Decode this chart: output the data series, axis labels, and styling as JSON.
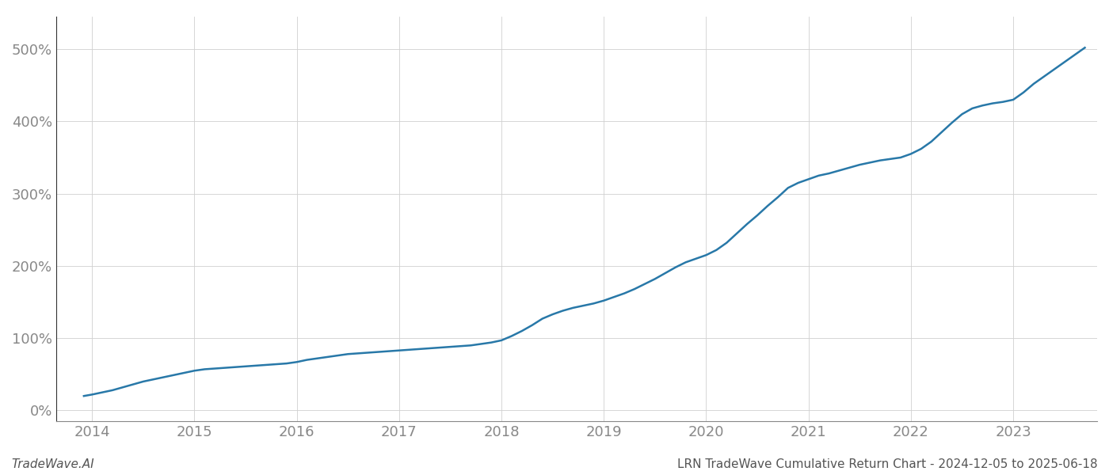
{
  "title": "LRN TradeWave Cumulative Return Chart - 2024-12-05 to 2025-06-18",
  "watermark": "TradeWave.AI",
  "line_color": "#2878a8",
  "background_color": "#ffffff",
  "grid_color": "#d0d0d0",
  "x_years": [
    2014,
    2015,
    2016,
    2017,
    2018,
    2019,
    2020,
    2021,
    2022,
    2023
  ],
  "x_data": [
    2013.92,
    2014.0,
    2014.1,
    2014.2,
    2014.3,
    2014.4,
    2014.5,
    2014.6,
    2014.7,
    2014.8,
    2014.9,
    2015.0,
    2015.1,
    2015.2,
    2015.3,
    2015.4,
    2015.5,
    2015.6,
    2015.7,
    2015.8,
    2015.9,
    2016.0,
    2016.1,
    2016.2,
    2016.3,
    2016.4,
    2016.5,
    2016.6,
    2016.7,
    2016.8,
    2016.9,
    2017.0,
    2017.1,
    2017.2,
    2017.3,
    2017.4,
    2017.5,
    2017.6,
    2017.7,
    2017.8,
    2017.9,
    2018.0,
    2018.1,
    2018.2,
    2018.3,
    2018.4,
    2018.5,
    2018.6,
    2018.7,
    2018.8,
    2018.9,
    2019.0,
    2019.1,
    2019.2,
    2019.3,
    2019.4,
    2019.5,
    2019.6,
    2019.7,
    2019.8,
    2019.9,
    2020.0,
    2020.1,
    2020.2,
    2020.3,
    2020.4,
    2020.5,
    2020.6,
    2020.7,
    2020.8,
    2020.9,
    2021.0,
    2021.1,
    2021.2,
    2021.3,
    2021.4,
    2021.5,
    2021.6,
    2021.7,
    2021.8,
    2021.9,
    2022.0,
    2022.1,
    2022.2,
    2022.3,
    2022.4,
    2022.5,
    2022.6,
    2022.7,
    2022.8,
    2022.9,
    2023.0,
    2023.1,
    2023.2,
    2023.3,
    2023.4,
    2023.5,
    2023.6,
    2023.7
  ],
  "y_data": [
    20,
    22,
    25,
    28,
    32,
    36,
    40,
    43,
    46,
    49,
    52,
    55,
    57,
    58,
    59,
    60,
    61,
    62,
    63,
    64,
    65,
    67,
    70,
    72,
    74,
    76,
    78,
    79,
    80,
    81,
    82,
    83,
    84,
    85,
    86,
    87,
    88,
    89,
    90,
    92,
    94,
    97,
    103,
    110,
    118,
    127,
    133,
    138,
    142,
    145,
    148,
    152,
    157,
    162,
    168,
    175,
    182,
    190,
    198,
    205,
    210,
    215,
    222,
    232,
    245,
    258,
    270,
    283,
    295,
    308,
    315,
    320,
    325,
    328,
    332,
    336,
    340,
    343,
    346,
    348,
    350,
    355,
    362,
    372,
    385,
    398,
    410,
    418,
    422,
    425,
    427,
    430,
    440,
    452,
    462,
    472,
    482,
    492,
    502
  ],
  "ylim": [
    -15,
    545
  ],
  "yticks": [
    0,
    100,
    200,
    300,
    400,
    500
  ],
  "title_fontsize": 11,
  "watermark_fontsize": 11,
  "tick_fontsize": 13,
  "line_width": 1.8,
  "figsize": [
    14.0,
    6.0
  ],
  "dpi": 100
}
